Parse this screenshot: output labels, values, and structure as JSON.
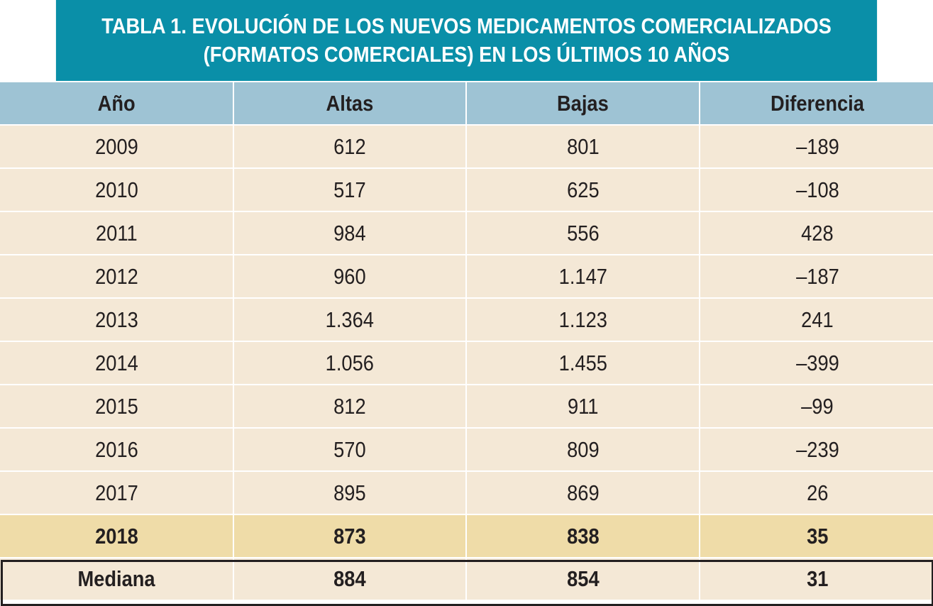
{
  "title": {
    "line1": "TABLA 1. EVOLUCIÓN DE LOS NUEVOS MEDICAMENTOS COMERCIALIZADOS",
    "line2": "(FORMATOS COMERCIALES) EN LOS ÚLTIMOS 10 AÑOS"
  },
  "headers": [
    "Año",
    "Altas",
    "Bajas",
    "Diferencia"
  ],
  "rows": [
    [
      "2009",
      "612",
      "801",
      "–189"
    ],
    [
      "2010",
      "517",
      "625",
      "–108"
    ],
    [
      "2011",
      "984",
      "556",
      "428"
    ],
    [
      "2012",
      "960",
      "1.147",
      "–187"
    ],
    [
      "2013",
      "1.364",
      "1.123",
      "241"
    ],
    [
      "2014",
      "1.056",
      "1.455",
      "–399"
    ],
    [
      "2015",
      "812",
      "911",
      "–99"
    ],
    [
      "2016",
      "570",
      "809",
      "–239"
    ],
    [
      "2017",
      "895",
      "869",
      "26"
    ],
    [
      "2018",
      "873",
      "838",
      "35"
    ]
  ],
  "median": [
    "Mediana",
    "884",
    "854",
    "31"
  ],
  "colors": {
    "title_bg": "#0a8fa8",
    "header_bg": "#9ec3d4",
    "row_bg": "#f4e8d6",
    "highlight_bg": "#efdca8"
  }
}
